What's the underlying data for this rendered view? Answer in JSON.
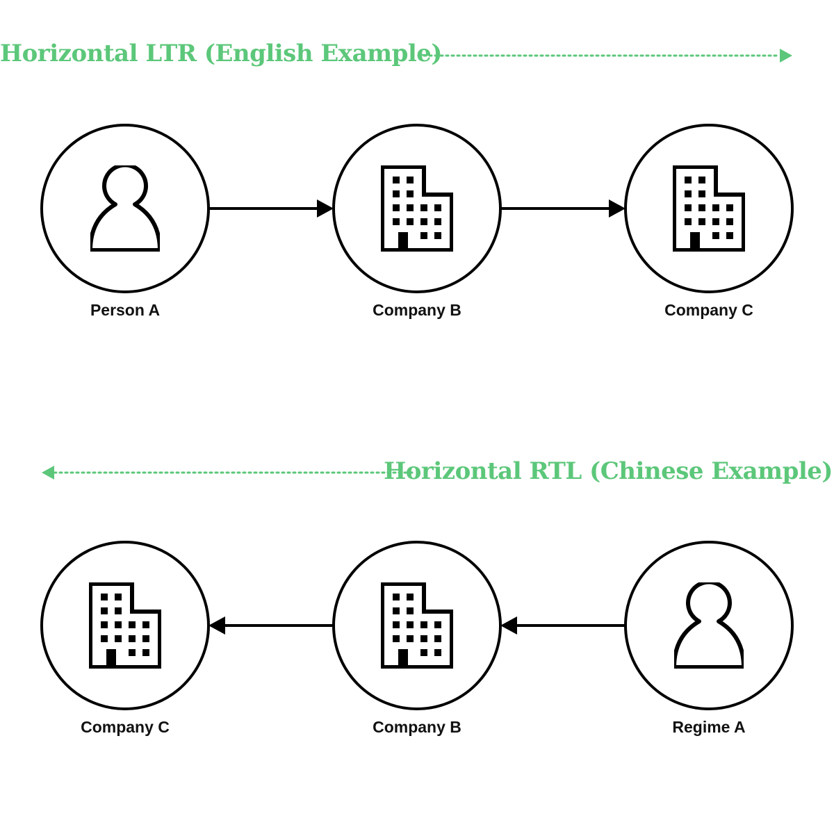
{
  "colors": {
    "accent": "#5cc77a",
    "ink": "#000000"
  },
  "sections": [
    {
      "heading": "Horizontal LTR (English Example)",
      "direction": "ltr",
      "nodes": [
        {
          "label": "Person A",
          "icon": "person-icon"
        },
        {
          "label": "Company B",
          "icon": "building-icon"
        },
        {
          "label": "Company C",
          "icon": "building-icon"
        }
      ]
    },
    {
      "heading": "Horizontal RTL (Chinese Example)",
      "direction": "rtl",
      "nodes": [
        {
          "label": "Company C",
          "icon": "building-icon"
        },
        {
          "label": "Company B",
          "icon": "building-icon"
        },
        {
          "label": "Regime A",
          "icon": "person-icon"
        }
      ]
    }
  ]
}
